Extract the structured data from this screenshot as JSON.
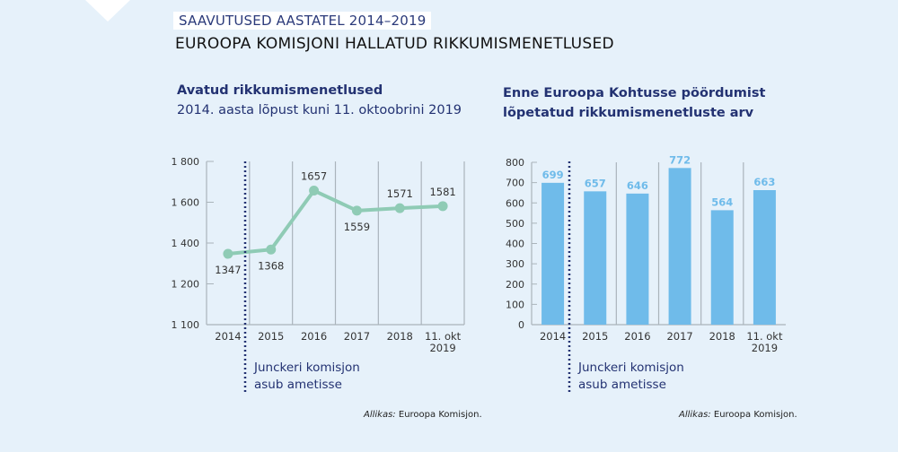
{
  "header": {
    "kicker": "SAAVUTUSED AASTATEL 2014–2019",
    "title": "EUROOPA KOMISJONI HALLATUD RIKKUMISMENETLUSED"
  },
  "colors": {
    "line": "#8fcbb5",
    "bar": "#6fbbea",
    "bar_label": "#6fbbea",
    "annotation": "#233272",
    "background": "#e6f1fa"
  },
  "chart_data": [
    {
      "type": "line",
      "title": "Avatud rikkumismenetlused",
      "subtitle": "2014. aasta lõpust kuni 11. oktoobrini 2019",
      "categories": [
        "2014",
        "2015",
        "2016",
        "2017",
        "2018",
        "11. okt\n2019"
      ],
      "values": [
        1347,
        1368,
        1657,
        1559,
        1571,
        1581
      ],
      "yticks": [
        "1 800",
        "1 600",
        "1 400",
        "1 200",
        "1 100"
      ],
      "ytick_values": [
        1800,
        1600,
        1400,
        1200,
        1100
      ],
      "ylim": [
        1100,
        1800
      ],
      "grid": "vertical",
      "annotation": [
        "Junckeri komisjon",
        "asub ametisse"
      ],
      "source_label": "Allikas:",
      "source": "Euroopa Komisjon."
    },
    {
      "type": "bar",
      "title": [
        "Enne Euroopa Kohtusse pöördumist",
        "lõpetatud rikkumismenetluste arv"
      ],
      "categories": [
        "2014",
        "2015",
        "2016",
        "2017",
        "2018",
        "11. okt\n2019"
      ],
      "values": [
        699,
        657,
        646,
        772,
        564,
        663
      ],
      "yticks": [
        "800",
        "700",
        "600",
        "500",
        "400",
        "300",
        "200",
        "100",
        "0"
      ],
      "ylim": [
        0,
        800
      ],
      "grid": "vertical",
      "annotation": [
        "Junckeri komisjon",
        "asub ametisse"
      ],
      "source_label": "Allikas:",
      "source": "Euroopa Komisjon."
    }
  ]
}
